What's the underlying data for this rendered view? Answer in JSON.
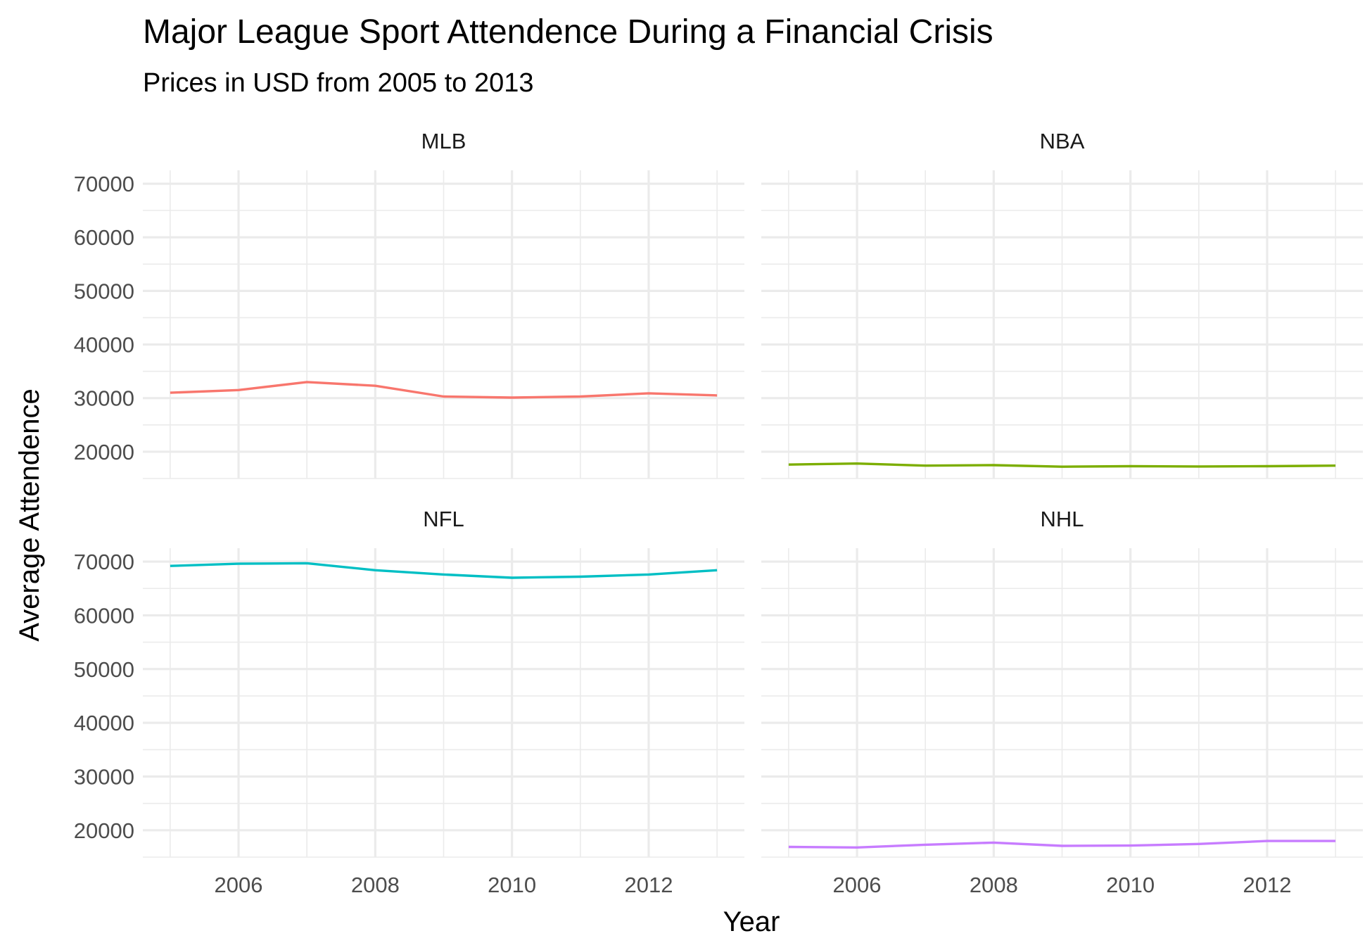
{
  "chart_data": {
    "type": "line",
    "title": "Major League Sport Attendence During a Financial Crisis",
    "subtitle": "Prices in USD from 2005 to 2013",
    "xlabel": "Year",
    "ylabel": "Average Attendence",
    "x": [
      2005,
      2006,
      2007,
      2008,
      2009,
      2010,
      2011,
      2012,
      2013
    ],
    "x_ticks": [
      "2006",
      "2008",
      "2010",
      "2012"
    ],
    "y_ticks": [
      "20000",
      "30000",
      "40000",
      "50000",
      "60000",
      "70000"
    ],
    "xlim": [
      2004.6,
      2013.4
    ],
    "ylim": [
      15000,
      72500
    ],
    "grid": true,
    "legend": "none",
    "facets": [
      {
        "name": "MLB",
        "color": "#F8766D",
        "values": [
          31000,
          31500,
          33000,
          32300,
          30300,
          30100,
          30300,
          30900,
          30500
        ]
      },
      {
        "name": "NBA",
        "color": "#7CAE00",
        "values": [
          17600,
          17800,
          17400,
          17500,
          17200,
          17300,
          17250,
          17300,
          17400
        ]
      },
      {
        "name": "NFL",
        "color": "#00BFC4",
        "values": [
          69200,
          69600,
          69700,
          68400,
          67600,
          67000,
          67200,
          67600,
          68400
        ]
      },
      {
        "name": "NHL",
        "color": "#C77CFF",
        "values": [
          16900,
          16800,
          17300,
          17700,
          17100,
          17150,
          17450,
          18000,
          18000
        ]
      }
    ]
  }
}
